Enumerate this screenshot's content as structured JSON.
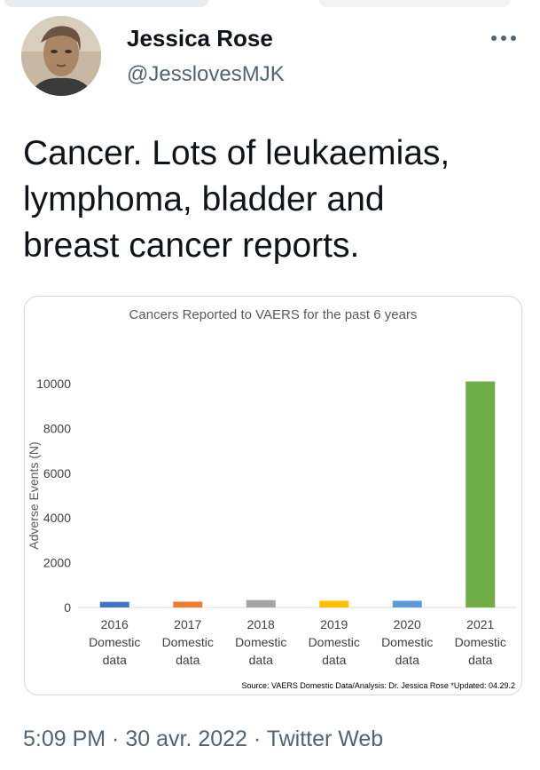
{
  "author": {
    "name": "Jessica Rose",
    "handle": "@JesslovesMJK",
    "avatar_icon": "profile-photo"
  },
  "more_icon": "more-options-icon",
  "tweet": {
    "lines": [
      "Cancer. Lots of leukaemias,",
      "lymphoma, bladder and",
      "breast cancer reports."
    ]
  },
  "meta": {
    "timestamp": "5:09 PM · 30 avr. 2022 · Twitter Web"
  },
  "chart_data": {
    "type": "bar",
    "title": "Cancers Reported to VAERS for the past 6 years",
    "ylabel": "Adverse Events (N)",
    "xlabel": "",
    "ylim": [
      0,
      10000
    ],
    "yticks": [
      0,
      2000,
      4000,
      6000,
      8000,
      10000
    ],
    "categories": [
      [
        "2016",
        "Domestic",
        "data"
      ],
      [
        "2017",
        "Domestic",
        "data"
      ],
      [
        "2018",
        "Domestic",
        "data"
      ],
      [
        "2019",
        "Domestic",
        "data"
      ],
      [
        "2020",
        "Domestic",
        "data"
      ],
      [
        "2021",
        "Domestic",
        "data"
      ]
    ],
    "values": [
      250,
      260,
      330,
      300,
      300,
      10100
    ],
    "colors": [
      "#4472c4",
      "#ed7d31",
      "#a5a5a5",
      "#ffc000",
      "#5b9bd5",
      "#70ad47"
    ],
    "grid": false,
    "source": "Source: VAERS Domestic Data/Analysis: Dr. Jessica Rose *Updated: 04.29.2"
  }
}
